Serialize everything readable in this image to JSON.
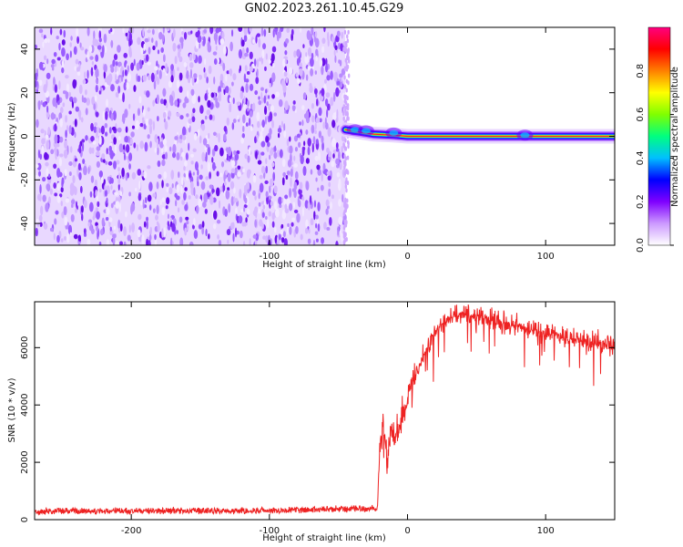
{
  "title": "GN02.2023.261.10.45.G29",
  "chart_data": [
    {
      "type": "heatmap",
      "xlabel": "Height of straight line (km)",
      "ylabel": "Frequency (Hz)",
      "xlim": [
        -270,
        150
      ],
      "ylim": [
        -50,
        50
      ],
      "xticks": [
        -200,
        -100,
        0,
        100
      ],
      "yticks": [
        -40,
        -20,
        0,
        20,
        40
      ],
      "noise_region": {
        "x": [
          -270,
          -45
        ],
        "y": [
          -50,
          50
        ],
        "description_level": "low"
      },
      "signal_track": {
        "x": [
          -45,
          150
        ],
        "frequency": [
          3,
          2,
          1,
          0.5,
          0,
          0
        ],
        "x_points": [
          -45,
          -35,
          -25,
          -10,
          0,
          150
        ]
      },
      "colorbar": {
        "label": "Normalized spectral amplitude",
        "range": [
          0.0,
          1.0
        ],
        "ticks": [
          "0.0",
          "0.2",
          "0.4",
          "0.6",
          "0.8"
        ],
        "colormap": [
          "#ffffff",
          "#cc99ff",
          "#7f00ff",
          "#0000ff",
          "#00bfff",
          "#00ff80",
          "#80ff00",
          "#ffff00",
          "#ff8000",
          "#ff0000",
          "#ff0080"
        ]
      }
    },
    {
      "type": "line",
      "xlabel": "Height of straight line (km)",
      "ylabel": "SNR (10 * v/v)",
      "xlim": [
        -270,
        150
      ],
      "ylim": [
        0,
        7600
      ],
      "xticks": [
        -200,
        -100,
        0,
        100
      ],
      "yticks": [
        0,
        2000,
        4000,
        6000
      ],
      "series": [
        {
          "color": "#ee2222",
          "x": [
            -270,
            -200,
            -100,
            -30,
            -22,
            -20,
            -18,
            -15,
            -12,
            -10,
            -5,
            0,
            10,
            20,
            30,
            40,
            60,
            80,
            100,
            120,
            150
          ],
          "values": [
            300,
            300,
            320,
            380,
            400,
            2500,
            3500,
            2200,
            3000,
            2800,
            3400,
            4200,
            5600,
            6600,
            7000,
            7200,
            7000,
            6700,
            6500,
            6300,
            6000
          ]
        }
      ]
    }
  ]
}
